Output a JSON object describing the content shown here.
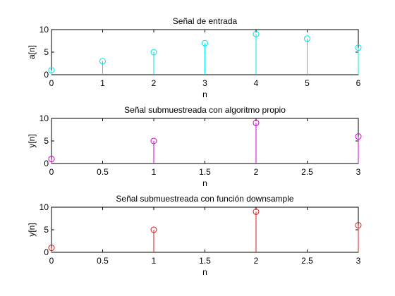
{
  "chart_data": [
    {
      "type": "stem",
      "title": "Señal de entrada",
      "xlabel": "n",
      "ylabel": "a[n]",
      "xlim": [
        0,
        6
      ],
      "ylim": [
        0,
        10
      ],
      "xticks": [
        0,
        1,
        2,
        3,
        4,
        5,
        6
      ],
      "yticks": [
        0,
        5,
        10
      ],
      "grid": false,
      "color": "#00e0e8",
      "series": [
        {
          "x": [
            0,
            1,
            2,
            3,
            4,
            5,
            6
          ],
          "values": [
            1,
            3,
            5,
            7,
            9,
            8,
            6
          ]
        }
      ]
    },
    {
      "type": "stem",
      "title": "Señal submuestreada con algoritmo propio",
      "xlabel": "n",
      "ylabel": "y[n]",
      "xlim": [
        0,
        3
      ],
      "ylim": [
        0,
        10
      ],
      "xticks": [
        0,
        0.5,
        1,
        1.5,
        2,
        2.5,
        3
      ],
      "yticks": [
        0,
        5,
        10
      ],
      "grid": false,
      "color": "#cc00cc",
      "series": [
        {
          "x": [
            0,
            1,
            2,
            3
          ],
          "values": [
            1,
            5,
            9,
            6
          ]
        }
      ]
    },
    {
      "type": "stem",
      "title": "Señal submuestreada con función downsample",
      "xlabel": "n",
      "ylabel": "y[n]",
      "xlim": [
        0,
        3
      ],
      "ylim": [
        0,
        10
      ],
      "xticks": [
        0,
        0.5,
        1,
        1.5,
        2,
        2.5,
        3
      ],
      "yticks": [
        0,
        5,
        10
      ],
      "grid": false,
      "color": "#d81818",
      "series": [
        {
          "x": [
            0,
            1,
            2,
            3
          ],
          "values": [
            1,
            5,
            9,
            6
          ]
        }
      ]
    }
  ]
}
